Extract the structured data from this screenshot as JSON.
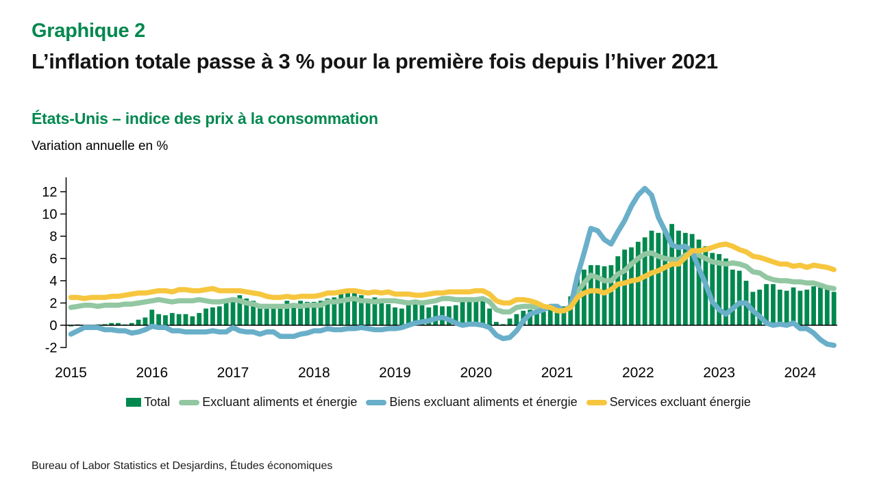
{
  "page": {
    "heading_label": "Graphique 2",
    "heading_title": "L’inflation totale passe à 3 % pour la première fois depuis l’hiver 2021",
    "subtitle": "États-Unis – indice des prix à la consommation",
    "axis_note": "Variation annuelle en %",
    "source": "Bureau of Labor Statistics et Desjardins, Études économiques"
  },
  "colors": {
    "title_green": "#00884E",
    "bar_green": "#00884E",
    "core_light_green": "#92C7A2",
    "goods_blue": "#69AFC9",
    "services_yellow": "#F6C63F",
    "axis_black": "#000000",
    "text_black": "#141414"
  },
  "chart_data": {
    "type": "bar",
    "title": "États-Unis – indice des prix à la consommation",
    "xlabel": "",
    "ylabel": "Variation annuelle en %",
    "x_start": "2015-01",
    "x_end": "2024-06",
    "x_frequency": "monthly",
    "year_labels": [
      "2015",
      "2016",
      "2017",
      "2018",
      "2019",
      "2020",
      "2021",
      "2022",
      "2023",
      "2024"
    ],
    "yticks": [
      -2,
      0,
      2,
      4,
      6,
      8,
      10,
      12
    ],
    "ylim": [
      -2,
      13.4
    ],
    "grid": false,
    "legend_position": "bottom",
    "series": [
      {
        "id": "total",
        "name": "Total",
        "type": "bar",
        "color": "#00884E",
        "values": [
          -0.1,
          0.0,
          -0.1,
          -0.2,
          0.0,
          0.1,
          0.2,
          0.2,
          0.0,
          0.2,
          0.5,
          0.7,
          1.4,
          1.0,
          0.9,
          1.1,
          1.0,
          1.0,
          0.8,
          1.1,
          1.5,
          1.6,
          1.7,
          2.1,
          2.5,
          2.7,
          2.4,
          2.2,
          1.9,
          1.6,
          1.7,
          1.9,
          2.2,
          2.0,
          2.2,
          2.1,
          2.1,
          2.2,
          2.4,
          2.5,
          2.8,
          2.9,
          2.9,
          2.7,
          2.3,
          2.5,
          2.2,
          1.9,
          1.6,
          1.5,
          1.9,
          2.0,
          1.8,
          1.6,
          1.8,
          1.7,
          1.7,
          1.8,
          2.1,
          2.3,
          2.5,
          2.3,
          1.5,
          0.3,
          0.1,
          0.6,
          1.0,
          1.3,
          1.4,
          1.2,
          1.2,
          1.4,
          1.4,
          1.7,
          2.6,
          4.2,
          5.0,
          5.4,
          5.4,
          5.3,
          5.4,
          6.2,
          6.8,
          7.0,
          7.5,
          7.9,
          8.5,
          8.3,
          8.6,
          9.1,
          8.5,
          8.3,
          8.2,
          7.7,
          7.1,
          6.5,
          6.4,
          6.0,
          5.0,
          4.9,
          4.0,
          3.0,
          3.2,
          3.7,
          3.7,
          3.2,
          3.1,
          3.4,
          3.1,
          3.2,
          3.5,
          3.4,
          3.3,
          3.0
        ]
      },
      {
        "id": "core",
        "name": "Excluant aliments et énergie",
        "type": "line",
        "color": "#92C7A2",
        "values": [
          1.6,
          1.7,
          1.8,
          1.8,
          1.7,
          1.8,
          1.8,
          1.8,
          1.9,
          1.9,
          2.0,
          2.1,
          2.2,
          2.3,
          2.2,
          2.1,
          2.2,
          2.2,
          2.2,
          2.3,
          2.2,
          2.1,
          2.1,
          2.2,
          2.3,
          2.2,
          2.0,
          1.9,
          1.7,
          1.7,
          1.7,
          1.7,
          1.7,
          1.8,
          1.7,
          1.8,
          1.8,
          1.8,
          2.1,
          2.1,
          2.2,
          2.3,
          2.4,
          2.2,
          2.2,
          2.1,
          2.2,
          2.2,
          2.2,
          2.1,
          2.0,
          2.1,
          2.0,
          2.1,
          2.2,
          2.4,
          2.4,
          2.3,
          2.3,
          2.3,
          2.3,
          2.4,
          2.1,
          1.4,
          1.2,
          1.2,
          1.6,
          1.7,
          1.7,
          1.6,
          1.6,
          1.6,
          1.4,
          1.3,
          1.6,
          3.0,
          3.8,
          4.5,
          4.3,
          4.0,
          4.0,
          4.6,
          4.9,
          5.5,
          6.0,
          6.4,
          6.5,
          6.2,
          6.0,
          5.9,
          5.9,
          6.3,
          6.6,
          6.3,
          6.0,
          5.7,
          5.6,
          5.5,
          5.6,
          5.5,
          5.3,
          4.8,
          4.7,
          4.3,
          4.1,
          4.0,
          4.0,
          3.9,
          3.9,
          3.8,
          3.8,
          3.6,
          3.4,
          3.3
        ]
      },
      {
        "id": "goods",
        "name": "Biens excluant aliments et énergie",
        "type": "line",
        "color": "#69AFC9",
        "values": [
          -0.8,
          -0.5,
          -0.2,
          -0.2,
          -0.2,
          -0.4,
          -0.4,
          -0.5,
          -0.5,
          -0.7,
          -0.6,
          -0.4,
          -0.1,
          -0.2,
          -0.2,
          -0.5,
          -0.5,
          -0.6,
          -0.6,
          -0.6,
          -0.6,
          -0.5,
          -0.6,
          -0.6,
          -0.2,
          -0.5,
          -0.6,
          -0.6,
          -0.8,
          -0.6,
          -0.6,
          -1.0,
          -1.0,
          -1.0,
          -0.8,
          -0.7,
          -0.5,
          -0.5,
          -0.3,
          -0.4,
          -0.4,
          -0.3,
          -0.3,
          -0.2,
          -0.3,
          -0.4,
          -0.4,
          -0.3,
          -0.3,
          -0.2,
          0.0,
          0.2,
          0.3,
          0.4,
          0.6,
          0.7,
          0.5,
          0.2,
          0.0,
          0.1,
          0.1,
          0.0,
          -0.2,
          -0.9,
          -1.2,
          -1.1,
          -0.5,
          0.4,
          1.0,
          1.2,
          1.4,
          1.7,
          1.7,
          1.3,
          1.7,
          4.4,
          6.5,
          8.7,
          8.5,
          7.7,
          7.3,
          8.4,
          9.4,
          10.7,
          11.7,
          12.3,
          11.7,
          9.7,
          8.5,
          7.2,
          7.0,
          7.1,
          6.6,
          5.1,
          3.7,
          2.1,
          1.4,
          1.0,
          1.5,
          2.0,
          2.0,
          1.3,
          0.8,
          0.2,
          0.0,
          0.1,
          0.0,
          0.2,
          -0.3,
          -0.3,
          -0.7,
          -1.3,
          -1.7,
          -1.8
        ]
      },
      {
        "id": "services",
        "name": "Services excluant énergie",
        "type": "line",
        "color": "#F6C63F",
        "values": [
          2.5,
          2.5,
          2.4,
          2.5,
          2.5,
          2.5,
          2.6,
          2.6,
          2.7,
          2.8,
          2.9,
          2.9,
          3.0,
          3.1,
          3.1,
          3.0,
          3.2,
          3.2,
          3.1,
          3.1,
          3.2,
          3.3,
          3.1,
          3.1,
          3.1,
          3.1,
          3.0,
          2.9,
          2.8,
          2.6,
          2.5,
          2.5,
          2.6,
          2.5,
          2.6,
          2.6,
          2.6,
          2.7,
          2.9,
          2.9,
          3.0,
          3.1,
          3.1,
          3.0,
          2.9,
          3.0,
          2.9,
          3.0,
          2.8,
          2.8,
          2.8,
          2.7,
          2.7,
          2.8,
          2.9,
          2.9,
          3.0,
          3.0,
          3.0,
          3.0,
          3.1,
          3.1,
          2.8,
          2.2,
          2.0,
          2.0,
          2.3,
          2.3,
          2.2,
          2.0,
          1.7,
          1.6,
          1.3,
          1.3,
          1.6,
          2.5,
          2.9,
          3.1,
          3.1,
          2.9,
          3.2,
          3.7,
          3.8,
          4.0,
          4.1,
          4.4,
          4.7,
          4.9,
          5.2,
          5.5,
          5.5,
          6.1,
          6.7,
          6.7,
          6.8,
          7.0,
          7.2,
          7.3,
          7.1,
          6.8,
          6.6,
          6.2,
          6.1,
          5.9,
          5.7,
          5.5,
          5.5,
          5.3,
          5.4,
          5.2,
          5.4,
          5.3,
          5.2,
          5.0
        ]
      }
    ]
  }
}
